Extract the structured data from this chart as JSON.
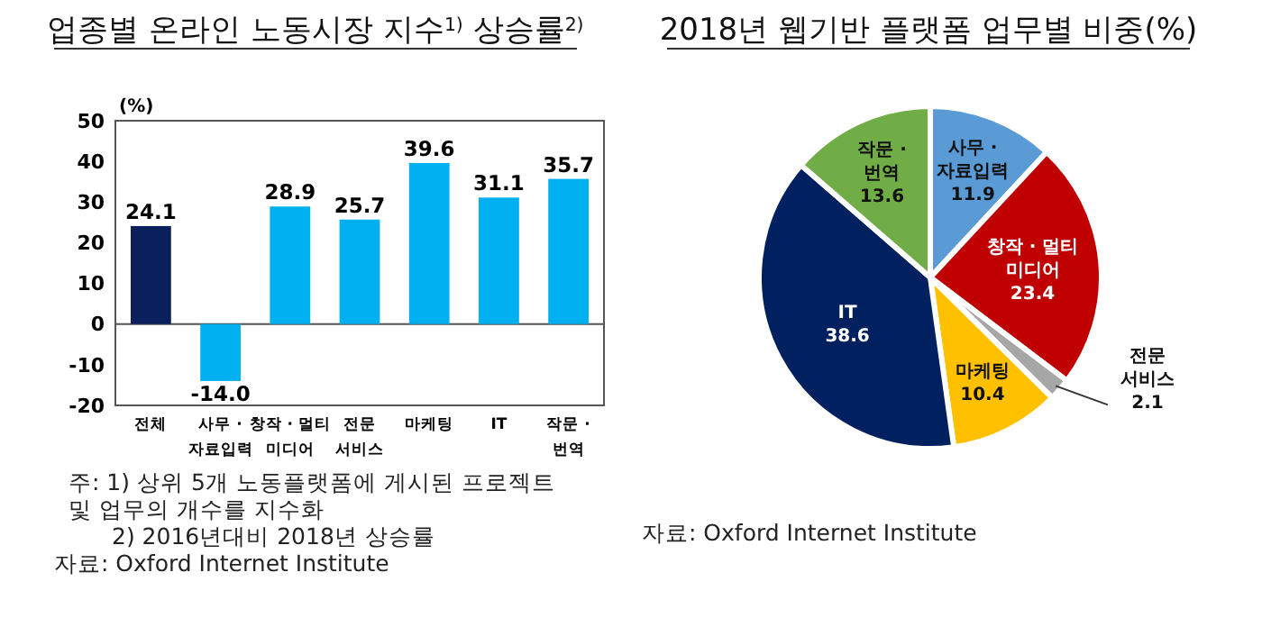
{
  "chart_data": [
    {
      "type": "bar",
      "title": "업종별 온라인 노동시장 지수$^{1)}$ 상승률$^{2)}$",
      "ylabel": "(%)",
      "categories": [
        "전체",
        "사무 ·\n자료입력",
        "창작 · 멀티\n미디어",
        "전문\n서비스",
        "마케팅",
        "IT",
        "작문 ·\n번역"
      ],
      "values": [
        24.1,
        -14.0,
        28.9,
        25.7,
        39.6,
        31.1,
        35.7
      ],
      "colors": [
        "#0a1f5c",
        "#00b0f0",
        "#00b0f0",
        "#00b0f0",
        "#00b0f0",
        "#00b0f0",
        "#00b0f0"
      ],
      "ylim": [
        -20,
        50
      ],
      "yticks": [
        -20,
        -10,
        0,
        10,
        20,
        30,
        40,
        50
      ],
      "value_labels": [
        "24.1",
        "-14.0",
        "28.9",
        "25.7",
        "39.6",
        "31.1",
        "35.7"
      ],
      "annotations": [
        "주: 1) 상위 5개 노동플랫폼에 게시된 프로젝트\n및 업무의 개수를 지수화",
        "2) 2016년대비 2018년 상승률",
        "자료: Oxford Internet Institute"
      ]
    },
    {
      "type": "pie",
      "title": "2018년 웹기반 플랫폼 업무별 비중(%)",
      "categories": [
        "사무 ·\n자료입력",
        "창작 · 멀티\n미디어",
        "전문\n서비스",
        "마케팅",
        "IT",
        "작문 ·\n번역"
      ],
      "values": [
        11.9,
        23.4,
        2.1,
        10.4,
        38.6,
        13.6
      ],
      "colors": [
        "#5b9bd5",
        "#c00000",
        "#a6a6a6",
        "#ffc000",
        "#002060",
        "#70ad47"
      ],
      "data_labels": true,
      "annotations": [
        "자료: Oxford Internet Institute"
      ]
    }
  ]
}
